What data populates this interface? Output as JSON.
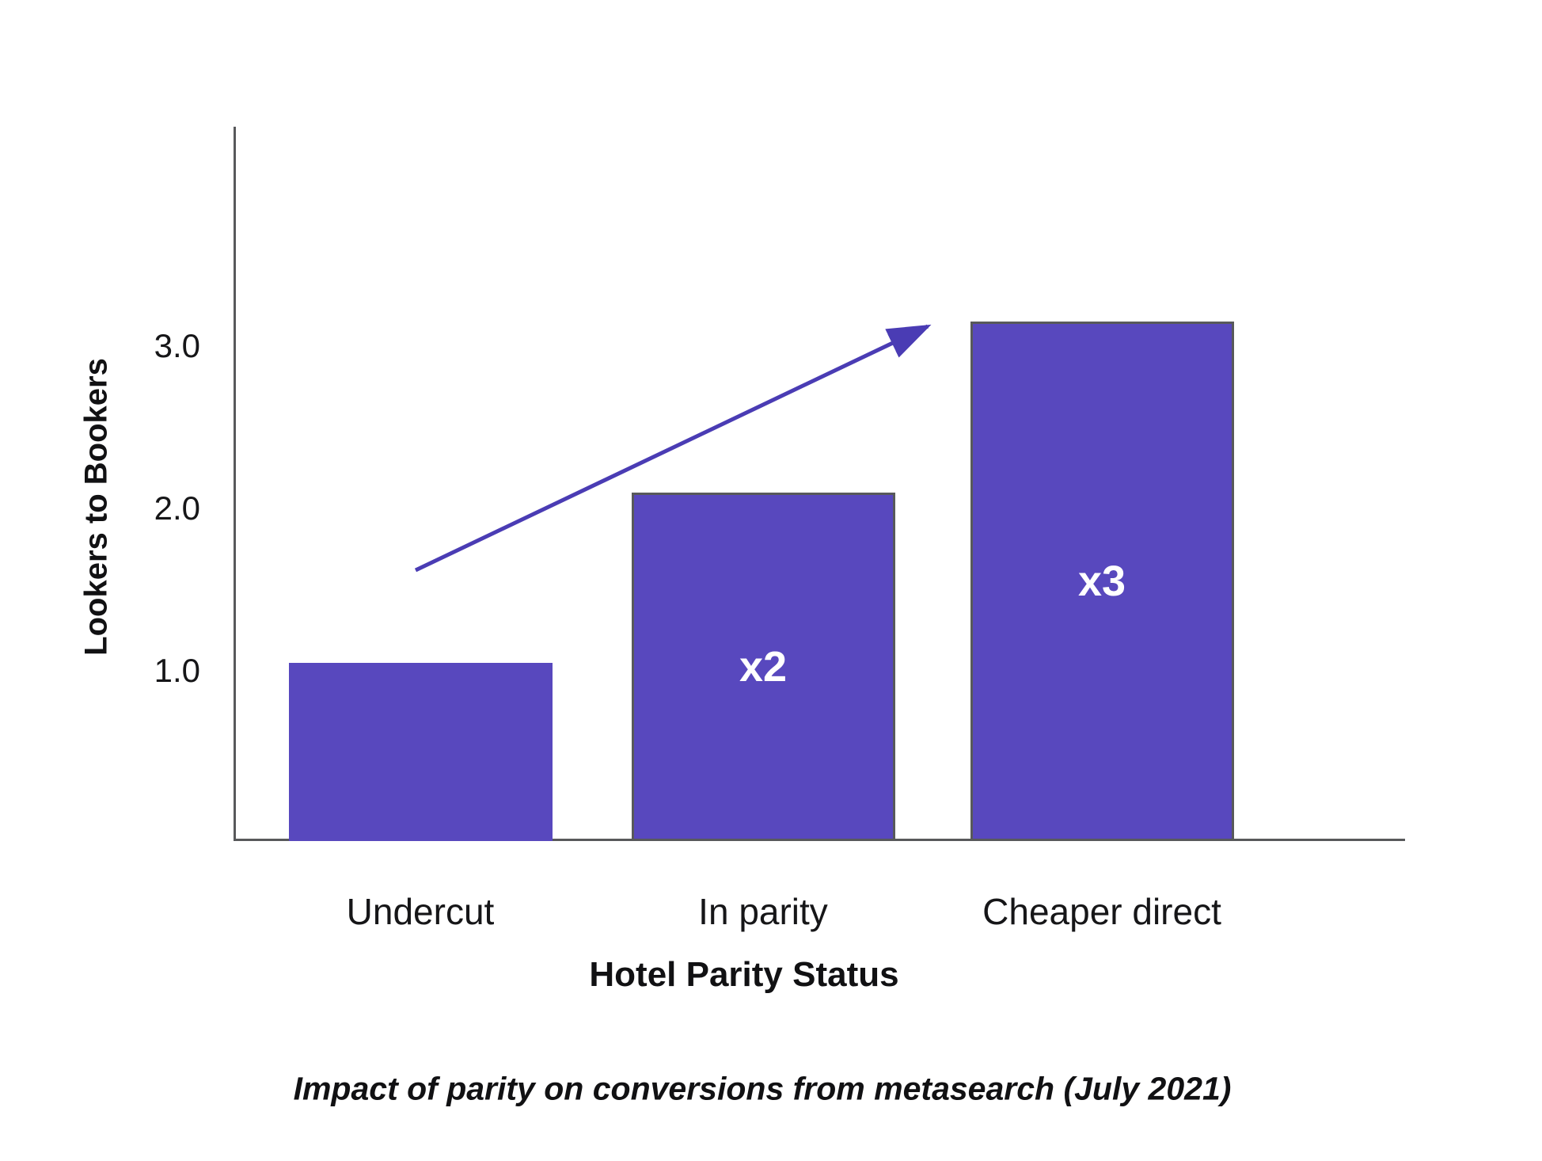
{
  "chart_data": {
    "type": "bar",
    "title": "Impact of parity on conversions from metasearch (July 2021)",
    "xlabel": "Hotel Parity Status",
    "ylabel": "Lookers to Bookers",
    "categories": [
      "Undercut",
      "In parity",
      "Cheaper direct"
    ],
    "values": [
      1.05,
      2.1,
      3.15
    ],
    "bar_labels": [
      "",
      "x2",
      "x3"
    ],
    "yticks": [
      {
        "label": "1.0",
        "value": 1.0
      },
      {
        "label": "2.0",
        "value": 2.0
      },
      {
        "label": "3.0",
        "value": 3.0
      }
    ],
    "ylim": [
      0,
      4.3
    ],
    "grid": false,
    "legend": null,
    "annotations": {
      "trend_arrow": "straight arrow rising from above first bar to top of third bar"
    },
    "colors": {
      "bar_fill": "#5848be",
      "bar_border": "#58595b",
      "axis": "#58595b",
      "arrow": "#4a3cb4",
      "bar_label_text": "#ffffff",
      "text": "#111113"
    }
  }
}
